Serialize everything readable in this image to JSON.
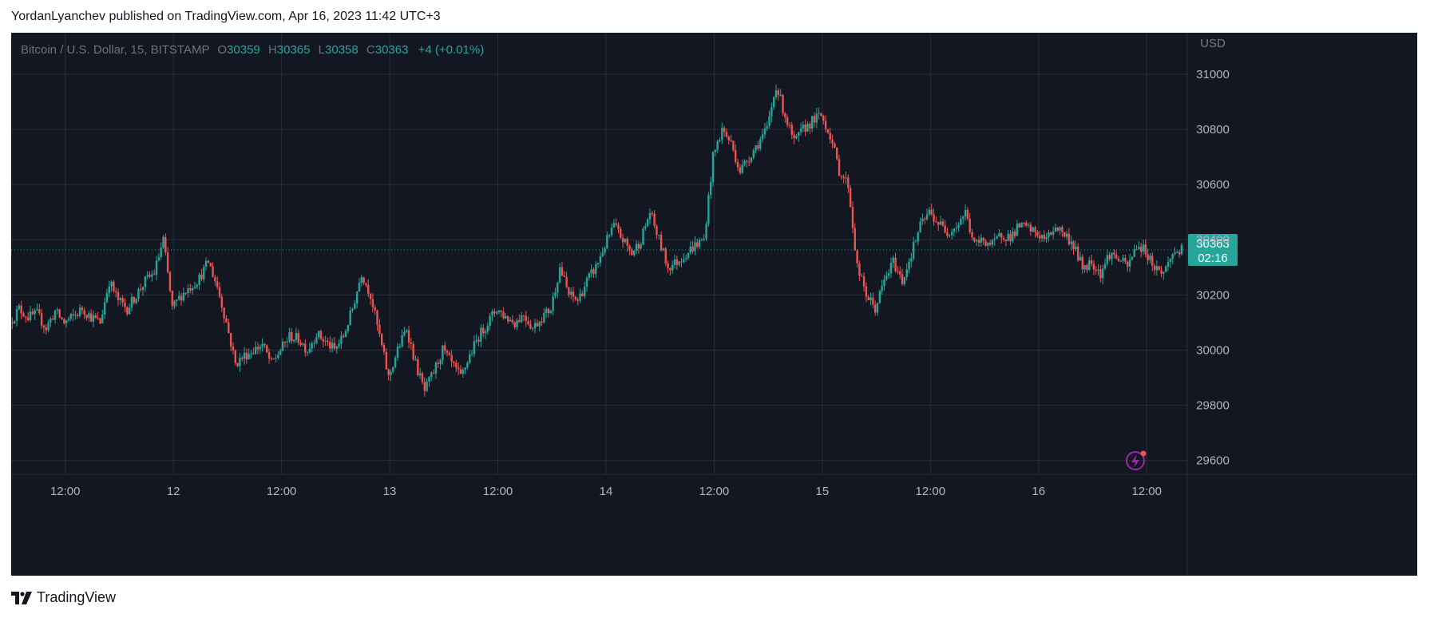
{
  "header": {
    "publisher_line": "YordanLyanchev published on TradingView.com, Apr 16, 2023 11:42 UTC+3"
  },
  "legend": {
    "symbol": "Bitcoin / U.S. Dollar, 15, BITSTAMP",
    "open_label": "O",
    "open": "30359",
    "high_label": "H",
    "high": "30365",
    "low_label": "L",
    "low": "30358",
    "close_label": "C",
    "close": "30363",
    "change": "+4 (+0.01%)"
  },
  "price_tag": {
    "price": "30363",
    "countdown": "02:16"
  },
  "footer": {
    "brand": "TradingView"
  },
  "colors": {
    "background": "#131722",
    "grid": "#2a2e39",
    "up": "#26a69a",
    "down": "#ef5350",
    "price_tag": "#26a69a",
    "alert_icon": "#9c27b0"
  },
  "chart_data": {
    "type": "candlestick",
    "title": "Bitcoin / U.S. Dollar, 15, BITSTAMP",
    "currency_label": "USD",
    "ylim": [
      29550,
      31150
    ],
    "y_ticks": [
      29600,
      29800,
      30000,
      30200,
      30400,
      30600,
      30800,
      31000
    ],
    "x_ticks": [
      {
        "label": "12:00",
        "t": 0
      },
      {
        "label": "12",
        "t": 12
      },
      {
        "label": "12:00",
        "t": 24
      },
      {
        "label": "13",
        "t": 36
      },
      {
        "label": "12:00",
        "t": 48
      },
      {
        "label": "14",
        "t": 60
      },
      {
        "label": "12:00",
        "t": 72
      },
      {
        "label": "15",
        "t": 84
      },
      {
        "label": "12:00",
        "t": 96
      },
      {
        "label": "16",
        "t": 108
      },
      {
        "label": "12:00",
        "t": 120
      }
    ],
    "xlim": [
      -6,
      124.5
    ],
    "last_price": 30363,
    "hourly_closes": [
      [
        -6,
        30100
      ],
      [
        -5,
        30150
      ],
      [
        -4,
        30120
      ],
      [
        -3,
        30130
      ],
      [
        -2,
        30080
      ],
      [
        -1,
        30140
      ],
      [
        0,
        30100
      ],
      [
        1,
        30120
      ],
      [
        2,
        30150
      ],
      [
        3,
        30120
      ],
      [
        4,
        30100
      ],
      [
        5,
        30250
      ],
      [
        6,
        30180
      ],
      [
        7,
        30150
      ],
      [
        8,
        30200
      ],
      [
        9,
        30250
      ],
      [
        10,
        30280
      ],
      [
        11,
        30400
      ],
      [
        12,
        30150
      ],
      [
        13,
        30200
      ],
      [
        14,
        30230
      ],
      [
        15,
        30260
      ],
      [
        16,
        30320
      ],
      [
        17,
        30230
      ],
      [
        18,
        30100
      ],
      [
        19,
        29950
      ],
      [
        20,
        29980
      ],
      [
        21,
        30000
      ],
      [
        22,
        30020
      ],
      [
        23,
        29950
      ],
      [
        24,
        30000
      ],
      [
        25,
        30050
      ],
      [
        26,
        30040
      ],
      [
        27,
        30000
      ],
      [
        28,
        30060
      ],
      [
        29,
        30030
      ],
      [
        30,
        30000
      ],
      [
        31,
        30050
      ],
      [
        32,
        30150
      ],
      [
        33,
        30280
      ],
      [
        34,
        30200
      ],
      [
        35,
        30050
      ],
      [
        36,
        29900
      ],
      [
        37,
        30000
      ],
      [
        38,
        30080
      ],
      [
        39,
        29950
      ],
      [
        40,
        29850
      ],
      [
        41,
        29920
      ],
      [
        42,
        30000
      ],
      [
        43,
        29950
      ],
      [
        44,
        29900
      ],
      [
        45,
        29980
      ],
      [
        46,
        30050
      ],
      [
        47,
        30100
      ],
      [
        48,
        30150
      ],
      [
        49,
        30120
      ],
      [
        50,
        30100
      ],
      [
        51,
        30130
      ],
      [
        52,
        30080
      ],
      [
        53,
        30120
      ],
      [
        54,
        30150
      ],
      [
        55,
        30300
      ],
      [
        56,
        30200
      ],
      [
        57,
        30180
      ],
      [
        58,
        30250
      ],
      [
        59,
        30300
      ],
      [
        60,
        30380
      ],
      [
        61,
        30450
      ],
      [
        62,
        30400
      ],
      [
        63,
        30350
      ],
      [
        64,
        30400
      ],
      [
        65,
        30500
      ],
      [
        66,
        30400
      ],
      [
        67,
        30300
      ],
      [
        68,
        30320
      ],
      [
        69,
        30350
      ],
      [
        70,
        30380
      ],
      [
        71,
        30400
      ],
      [
        72,
        30700
      ],
      [
        73,
        30800
      ],
      [
        74,
        30750
      ],
      [
        75,
        30650
      ],
      [
        76,
        30700
      ],
      [
        77,
        30750
      ],
      [
        78,
        30800
      ],
      [
        79,
        30960
      ],
      [
        80,
        30850
      ],
      [
        81,
        30750
      ],
      [
        82,
        30800
      ],
      [
        83,
        30830
      ],
      [
        84,
        30850
      ],
      [
        85,
        30780
      ],
      [
        86,
        30650
      ],
      [
        87,
        30600
      ],
      [
        88,
        30300
      ],
      [
        89,
        30200
      ],
      [
        90,
        30150
      ],
      [
        91,
        30250
      ],
      [
        92,
        30320
      ],
      [
        93,
        30250
      ],
      [
        94,
        30350
      ],
      [
        95,
        30450
      ],
      [
        96,
        30500
      ],
      [
        97,
        30460
      ],
      [
        98,
        30430
      ],
      [
        99,
        30450
      ],
      [
        100,
        30500
      ],
      [
        101,
        30380
      ],
      [
        102,
        30400
      ],
      [
        103,
        30380
      ],
      [
        104,
        30420
      ],
      [
        105,
        30410
      ],
      [
        106,
        30450
      ],
      [
        107,
        30440
      ],
      [
        108,
        30420
      ],
      [
        109,
        30400
      ],
      [
        110,
        30450
      ],
      [
        111,
        30420
      ],
      [
        112,
        30380
      ],
      [
        113,
        30300
      ],
      [
        114,
        30320
      ],
      [
        115,
        30280
      ],
      [
        116,
        30350
      ],
      [
        117,
        30330
      ],
      [
        118,
        30300
      ],
      [
        119,
        30380
      ],
      [
        120,
        30360
      ],
      [
        121,
        30300
      ],
      [
        122,
        30280
      ],
      [
        123,
        30350
      ],
      [
        124,
        30363
      ]
    ]
  }
}
